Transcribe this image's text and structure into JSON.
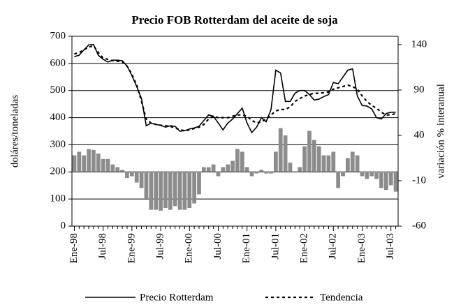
{
  "chart_data": {
    "type": "bar_line",
    "title": "Precio FOB Rotterdam del aceite de soja",
    "ylabel": "doláres/toneladas",
    "y2label": "variación % interanual",
    "categories": [
      "Ene-98",
      null,
      null,
      null,
      null,
      null,
      "Jul-98",
      null,
      null,
      null,
      null,
      null,
      "Ene-99",
      null,
      null,
      null,
      null,
      null,
      "Jul-99",
      null,
      null,
      null,
      null,
      null,
      "Ene-00",
      null,
      null,
      null,
      null,
      null,
      "Jul-00",
      null,
      null,
      null,
      null,
      null,
      "Ene-01",
      null,
      null,
      null,
      null,
      null,
      "Jul-01",
      null,
      null,
      null,
      null,
      null,
      "Ene-02",
      null,
      null,
      null,
      null,
      null,
      "Jul-02",
      null,
      null,
      null,
      null,
      null,
      "Ene-03",
      null,
      null,
      null,
      null,
      null,
      "Jul-03",
      null
    ],
    "ylim": [
      0,
      700
    ],
    "yticks": [
      0,
      100,
      200,
      300,
      400,
      500,
      600,
      700
    ],
    "y2lim": [
      -60,
      149.2
    ],
    "y2ticks": [
      -60,
      -10,
      40,
      90,
      140
    ],
    "grid": true,
    "series": [
      {
        "name": "Precio Rotterdam",
        "type": "line",
        "color": "#000000",
        "dash": false,
        "values": [
          625,
          630,
          650,
          668,
          670,
          630,
          615,
          605,
          612,
          612,
          610,
          590,
          555,
          515,
          470,
          370,
          380,
          375,
          372,
          365,
          370,
          368,
          350,
          352,
          358,
          362,
          368,
          390,
          410,
          405,
          380,
          355,
          380,
          395,
          415,
          435,
          380,
          345,
          365,
          400,
          385,
          430,
          575,
          565,
          460,
          460,
          490,
          500,
          500,
          485,
          465,
          468,
          478,
          485,
          530,
          525,
          550,
          575,
          580,
          480,
          445,
          443,
          432,
          400,
          395,
          415,
          420,
          420
        ]
      },
      {
        "name": "Tendencia",
        "type": "line",
        "color": "#000000",
        "dash": true,
        "values": [
          635,
          640,
          650,
          660,
          665,
          640,
          620,
          615,
          610,
          608,
          605,
          590,
          560,
          520,
          460,
          395,
          380,
          375,
          372,
          370,
          368,
          362,
          355,
          352,
          355,
          360,
          365,
          375,
          395,
          405,
          400,
          400,
          400,
          405,
          410,
          410,
          405,
          390,
          380,
          385,
          395,
          410,
          425,
          430,
          430,
          440,
          460,
          470,
          480,
          485,
          490,
          490,
          492,
          495,
          505,
          510,
          515,
          520,
          515,
          505,
          480,
          460,
          445,
          435,
          420,
          410,
          410,
          415
        ]
      },
      {
        "type": "bar",
        "axis": "y2",
        "color": "#8c8c8c",
        "values": [
          18,
          22,
          18,
          25,
          24,
          20,
          14,
          14,
          8,
          5,
          2,
          -7,
          -5,
          -12,
          -18,
          -30,
          -42,
          -42,
          -43,
          -40,
          -42,
          -38,
          -42,
          -42,
          -40,
          -35,
          -25,
          5,
          5,
          8,
          -5,
          5,
          8,
          12,
          25,
          22,
          5,
          -5,
          -2,
          2,
          -2,
          -2,
          22,
          48,
          40,
          10,
          0,
          5,
          28,
          45,
          35,
          28,
          18,
          18,
          22,
          -18,
          -5,
          15,
          22,
          18,
          -5,
          -8,
          -5,
          -8,
          -18,
          -20,
          -15,
          -22
        ]
      }
    ]
  }
}
